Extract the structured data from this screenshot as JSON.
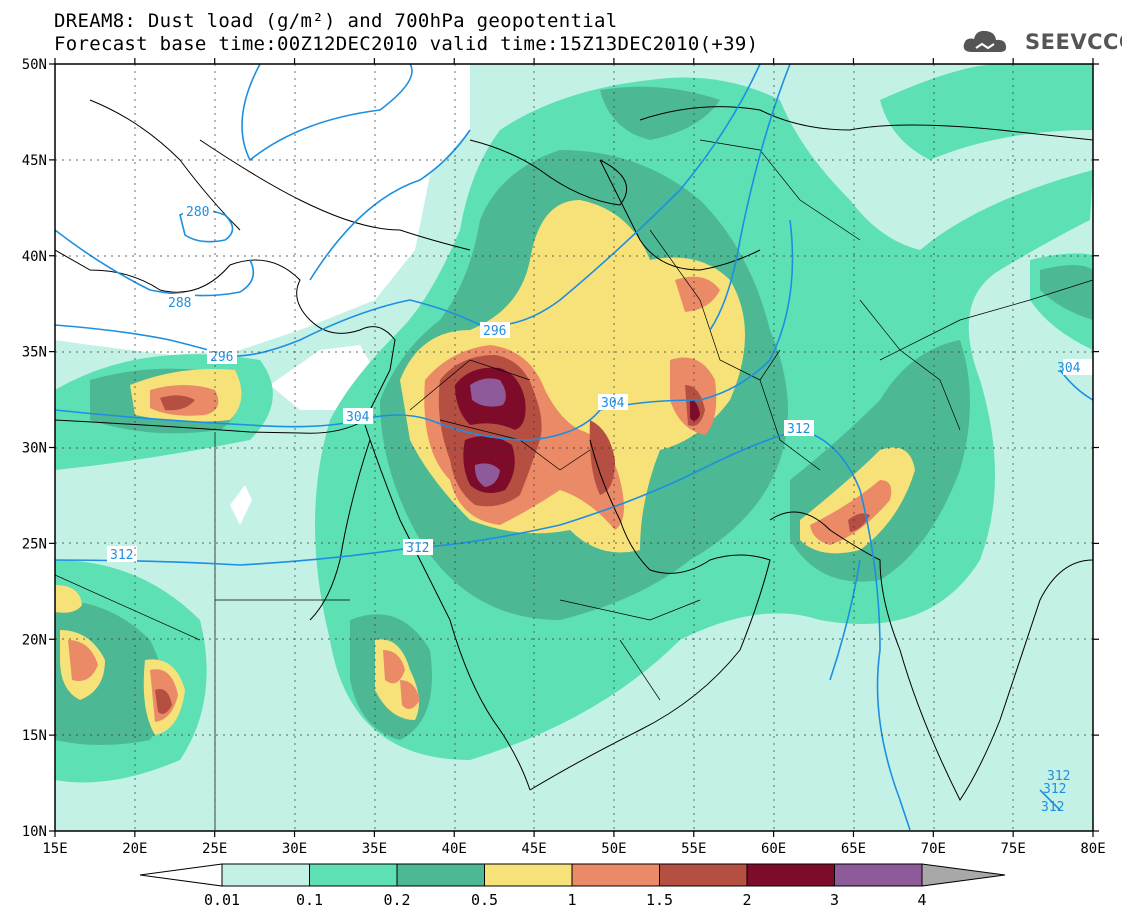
{
  "title": {
    "line1": "DREAM8: Dust load (g/m²) and 700hPa geopotential",
    "line2": "Forecast base time:00Z12DEC2010 valid time:15Z13DEC2010(+39)"
  },
  "logo": {
    "text": "SEEVCCC",
    "icon": "cloud-icon"
  },
  "axes": {
    "lat_labels": [
      "50N",
      "45N",
      "40N",
      "35N",
      "30N",
      "25N",
      "20N",
      "15N",
      "10N"
    ],
    "lon_labels": [
      "15E",
      "20E",
      "25E",
      "30E",
      "35E",
      "40E",
      "45E",
      "50E",
      "55E",
      "60E",
      "65E",
      "70E",
      "75E",
      "80E"
    ],
    "lon_range": [
      15,
      80
    ],
    "lat_range": [
      10,
      50
    ]
  },
  "contour_labels": [
    "280",
    "288",
    "296",
    "296",
    "304",
    "304",
    "312",
    "312",
    "312",
    "312",
    "304",
    "312",
    "312",
    "312"
  ],
  "legend": {
    "bounds": [
      "0.01",
      "0.1",
      "0.2",
      "0.5",
      "1",
      "1.5",
      "2",
      "3",
      "4"
    ],
    "colors": [
      "#ffffff",
      "#c4f1e6",
      "#5ee0b5",
      "#4cb994",
      "#f7e27a",
      "#ea8a67",
      "#b44f42",
      "#7e0b2a",
      "#8e5a99",
      "#a8a8a8"
    ]
  }
}
